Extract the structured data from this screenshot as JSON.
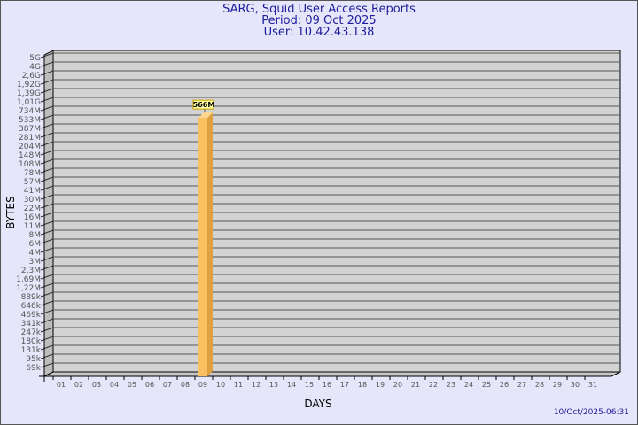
{
  "chart_data": {
    "type": "bar",
    "title": "SARG, Squid User Access Reports",
    "subtitle": [
      "Period: 09 Oct 2025",
      "User: 10.42.43.138"
    ],
    "xlabel": "DAYS",
    "ylabel": "BYTES",
    "y_scale": "log",
    "y_ticks": [
      "5G",
      "4G",
      "2,6G",
      "1,92G",
      "1,39G",
      "1,01G",
      "734M",
      "533M",
      "387M",
      "281M",
      "204M",
      "148M",
      "108M",
      "78M",
      "57M",
      "41M",
      "30M",
      "22M",
      "16M",
      "11M",
      "8M",
      "6M",
      "4M",
      "3M",
      "2,3M",
      "1,69M",
      "1,22M",
      "889k",
      "646k",
      "469k",
      "341k",
      "247k",
      "180k",
      "131k",
      "95k",
      "69k"
    ],
    "categories": [
      "01",
      "02",
      "03",
      "04",
      "05",
      "06",
      "07",
      "08",
      "09",
      "10",
      "11",
      "12",
      "13",
      "14",
      "15",
      "16",
      "17",
      "18",
      "19",
      "20",
      "21",
      "22",
      "23",
      "24",
      "25",
      "26",
      "27",
      "28",
      "29",
      "30",
      "31"
    ],
    "bars": [
      {
        "day": "09",
        "value_label": "566M",
        "value_bytes": 566000000
      }
    ],
    "grid": true,
    "colors": {
      "bar": "#f8c060",
      "wall": "#d3d3d3",
      "background": "#e6e6fa",
      "text": "#1c1c9c"
    }
  },
  "footer": "10/Oct/2025-06:31"
}
